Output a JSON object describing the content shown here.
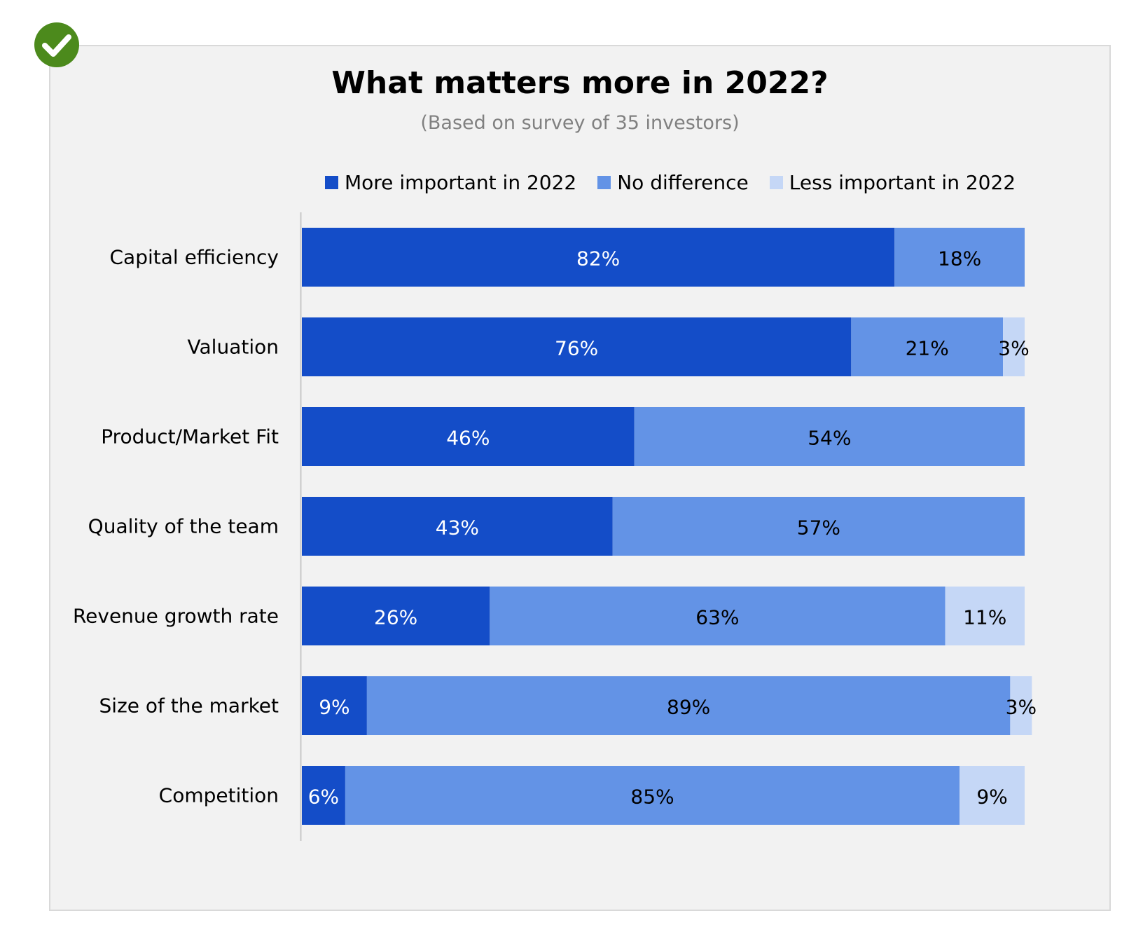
{
  "chart_data": {
    "type": "bar",
    "orientation": "horizontal",
    "stacked": true,
    "title": "What matters more in 2022?",
    "subtitle": "(Based on survey of 35 investors)",
    "categories": [
      "Capital efficiency",
      "Valuation",
      "Product/Market Fit",
      "Quality of the team",
      "Revenue growth rate",
      "Size of the market",
      "Competition"
    ],
    "series": [
      {
        "name": "More important in 2022",
        "color": "#144dc8",
        "label_color": "#ffffff",
        "values": [
          82,
          76,
          46,
          43,
          26,
          9,
          6
        ]
      },
      {
        "name": "No difference",
        "color": "#6393e6",
        "label_color": "#000000",
        "values": [
          18,
          21,
          54,
          57,
          63,
          89,
          85
        ]
      },
      {
        "name": "Less important in 2022",
        "color": "#c5d7f6",
        "label_color": "#000000",
        "values": [
          0,
          3,
          0,
          0,
          11,
          3,
          9
        ]
      }
    ],
    "value_suffix": "%",
    "xlim": [
      0,
      100
    ],
    "grid": false,
    "legend_position": "top"
  },
  "badge": {
    "icon": "check-icon",
    "color": "#4c8a1c"
  }
}
